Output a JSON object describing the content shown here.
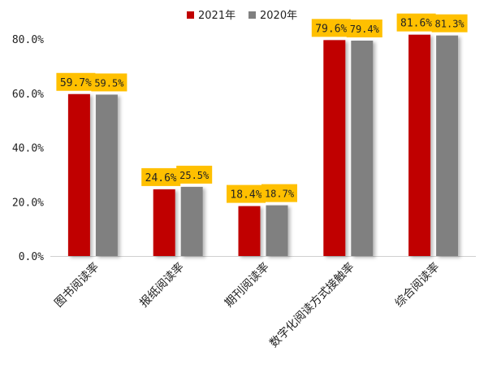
{
  "chart_data": {
    "type": "bar",
    "categories": [
      "图书阅读率",
      "报纸阅读率",
      "期刊阅读率",
      "数字化阅读方式接触率",
      "综合阅读率"
    ],
    "series": [
      {
        "name": "2021年",
        "values": [
          59.7,
          24.6,
          18.4,
          79.6,
          81.6
        ],
        "labels": [
          "59.7%",
          "24.6%",
          "18.4%",
          "79.6%",
          "81.6%"
        ],
        "color": "#c00000"
      },
      {
        "name": "2020年",
        "values": [
          59.5,
          25.5,
          18.7,
          79.4,
          81.3
        ],
        "labels": [
          "59.5%",
          "25.5%",
          "18.7%",
          "79.4%",
          "81.3%"
        ],
        "color": "#808080"
      }
    ],
    "yticks": [
      "0.0%",
      "20.0%",
      "40.0%",
      "60.0%",
      "80.0%"
    ],
    "ylim": [
      0,
      80
    ],
    "data_label_bg": "#ffc000",
    "grid": false,
    "legend_position": "top-center"
  }
}
